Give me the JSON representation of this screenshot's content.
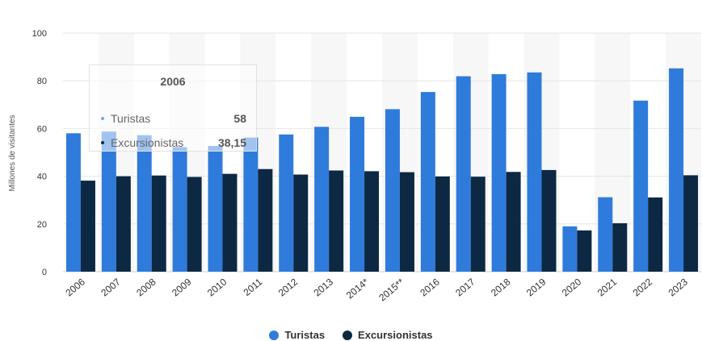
{
  "chart_data": {
    "type": "bar",
    "categories": [
      "2006",
      "2007",
      "2008",
      "2009",
      "2010",
      "2011",
      "2012",
      "2013",
      "2014*",
      "2015**",
      "2016",
      "2017",
      "2018",
      "2019",
      "2020",
      "2021",
      "2022",
      "2023"
    ],
    "series": [
      {
        "name": "Turistas",
        "color": "#2f7bdb",
        "values": [
          58,
          58.7,
          57.2,
          52.2,
          52.7,
          56.2,
          57.5,
          60.7,
          64.9,
          68.1,
          75.3,
          81.9,
          82.8,
          83.5,
          19,
          31.2,
          71.7,
          85.2
        ]
      },
      {
        "name": "Excursionistas",
        "color": "#0d2842",
        "values": [
          38.15,
          40,
          40.3,
          39.7,
          41,
          43,
          40.7,
          42.4,
          42.1,
          41.7,
          39.9,
          39.8,
          41.8,
          42.6,
          17.3,
          20.3,
          31.1,
          40.4
        ]
      }
    ],
    "ylabel": "Millones de visitantes",
    "ylim": [
      0,
      100
    ],
    "yticks": [
      0,
      20,
      40,
      60,
      80,
      100
    ],
    "grid": true,
    "legend": "bottom"
  },
  "tooltip": {
    "title": "2006",
    "rows": [
      {
        "name": "Turistas",
        "value": "58",
        "color": "#6fa7ec"
      },
      {
        "name": "Excursionistas",
        "value": "38,15",
        "color": "#0d2842"
      }
    ]
  }
}
